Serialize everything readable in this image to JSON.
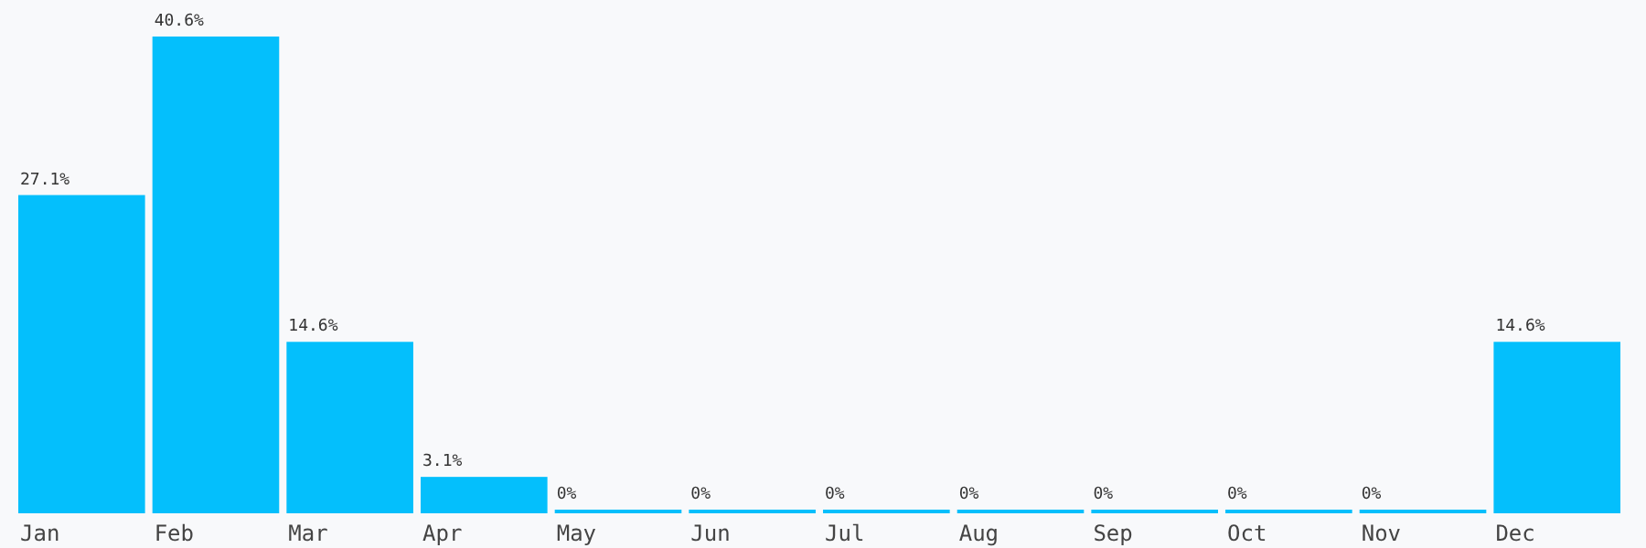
{
  "chart_data": {
    "type": "bar",
    "categories": [
      "Jan",
      "Feb",
      "Mar",
      "Apr",
      "May",
      "Jun",
      "Jul",
      "Aug",
      "Sep",
      "Oct",
      "Nov",
      "Dec"
    ],
    "values": [
      27.1,
      40.6,
      14.6,
      3.1,
      0,
      0,
      0,
      0,
      0,
      0,
      0,
      14.6
    ],
    "value_labels": [
      "27.1%",
      "40.6%",
      "14.6%",
      "3.1%",
      "0%",
      "0%",
      "0%",
      "0%",
      "0%",
      "0%",
      "0%",
      "14.6%"
    ],
    "color": "#04bffc",
    "tick_labels": "x"
  }
}
